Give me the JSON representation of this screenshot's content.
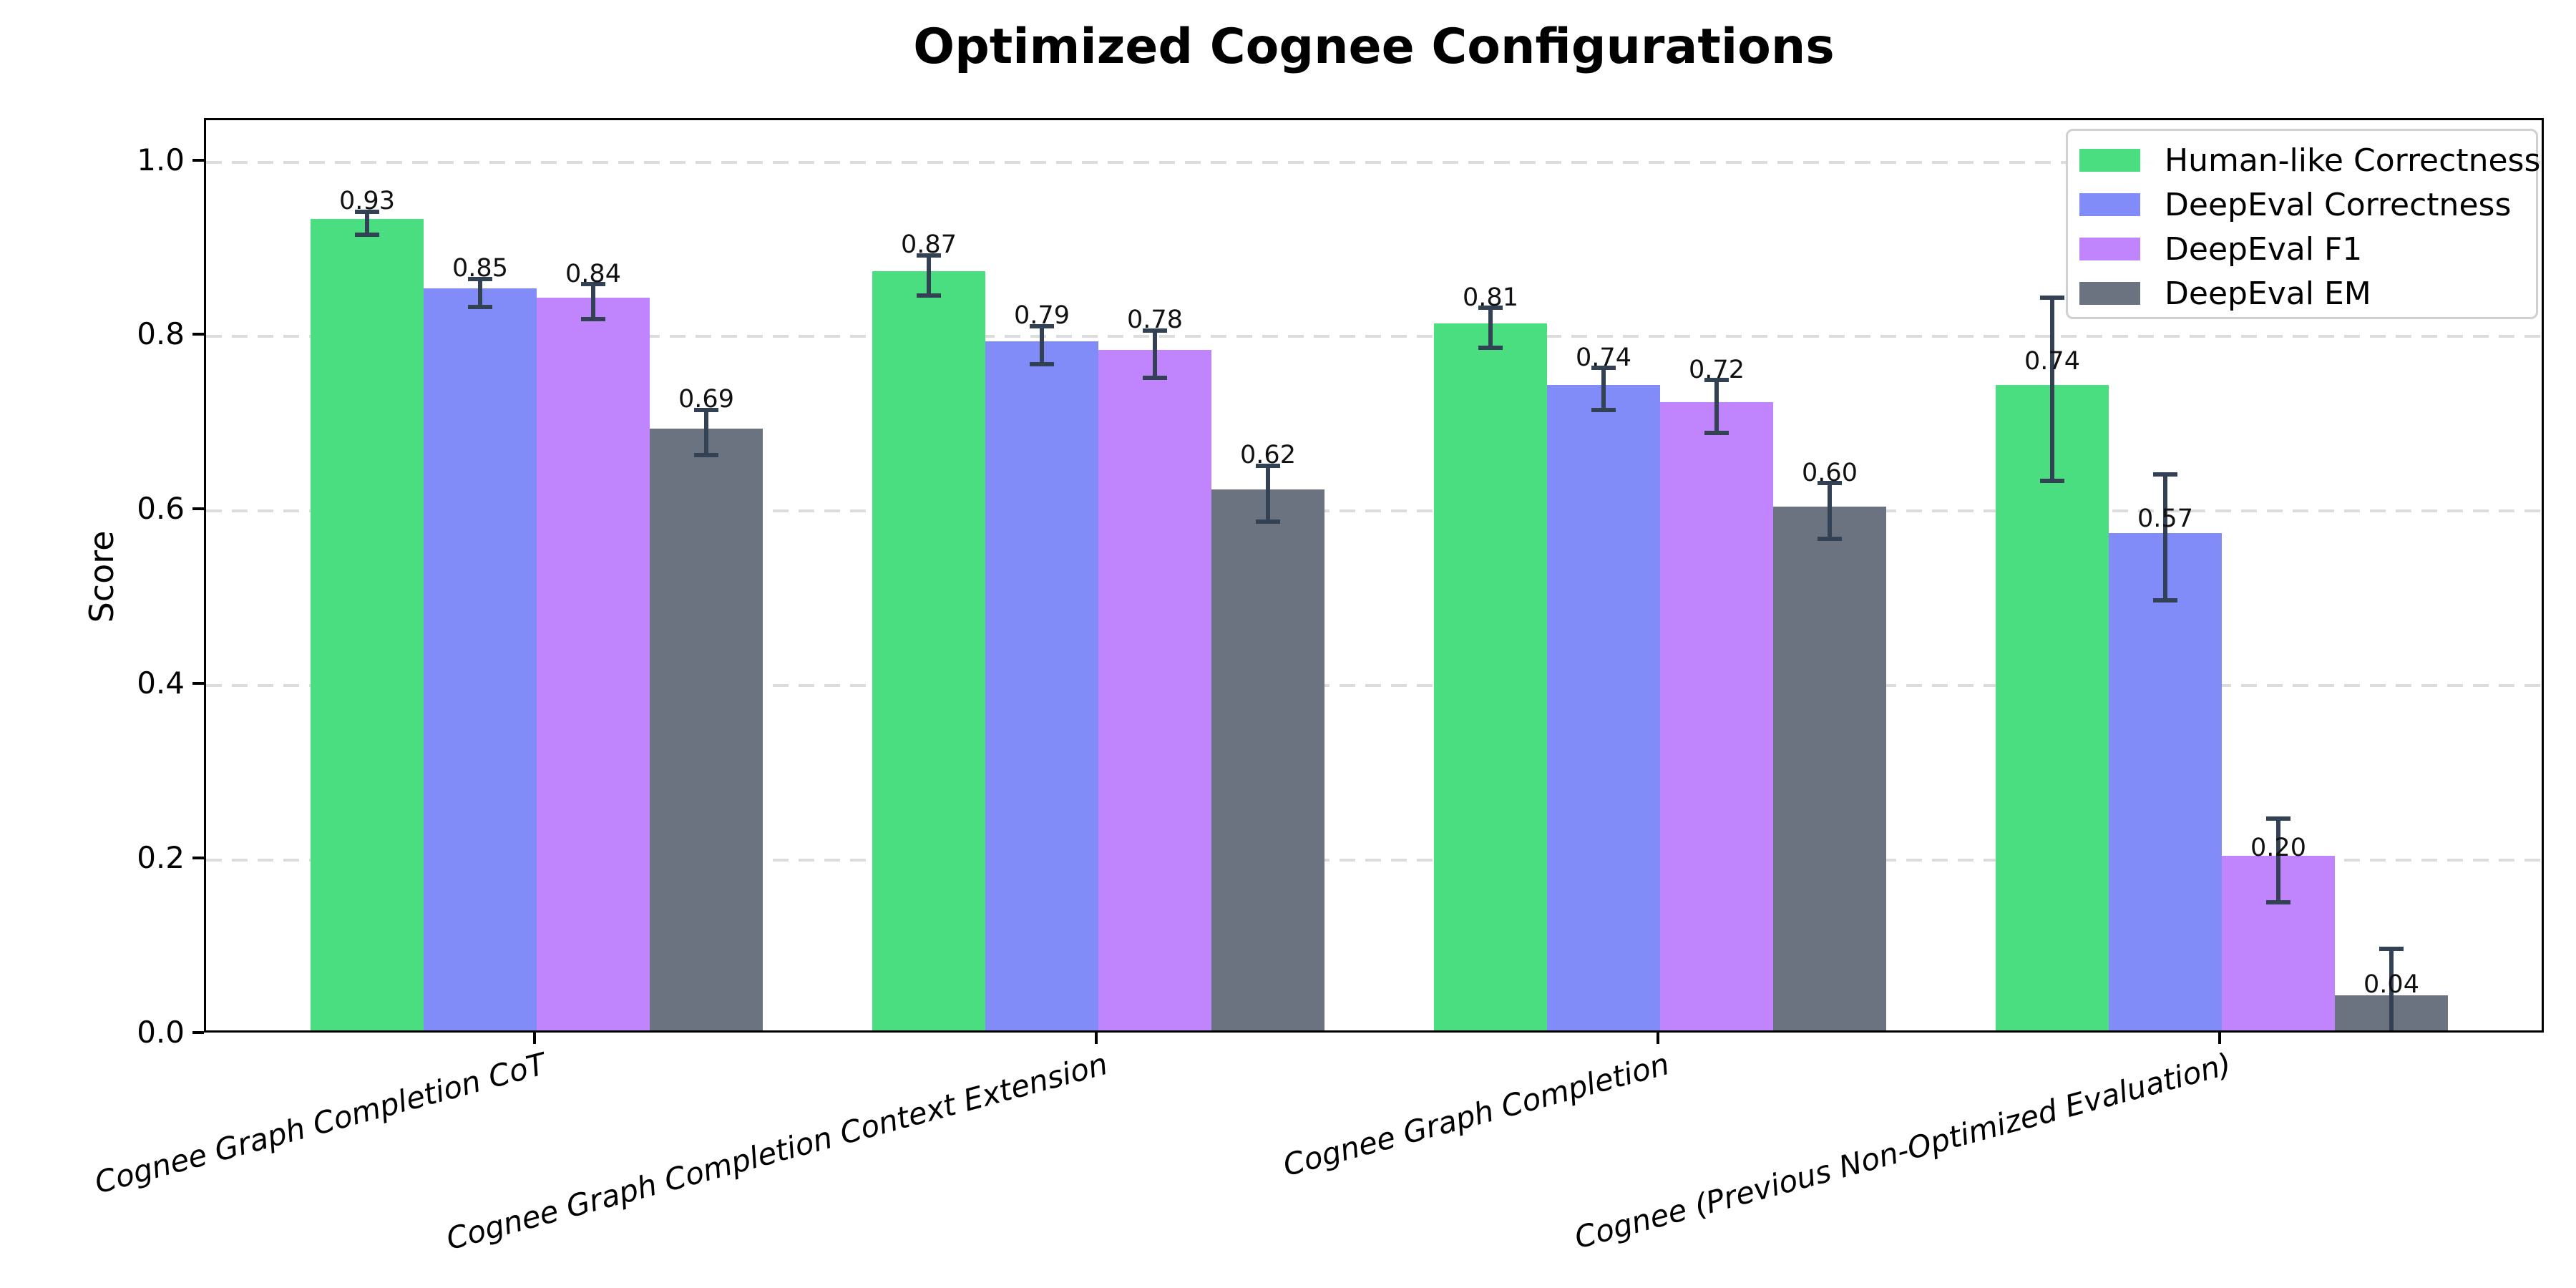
{
  "chart_data": {
    "type": "bar",
    "title": "Optimized Cognee Configurations",
    "ylabel": "Score",
    "xlabel": "",
    "ylim": [
      0.0,
      1.05
    ],
    "yticks": [
      0.0,
      0.2,
      0.4,
      0.6,
      0.8,
      1.0
    ],
    "grid": "horizontal dashed gridlines at y ticks",
    "legend_position": "upper right",
    "background_color": "#ffffff",
    "axis_color": "#000000",
    "gridline_color": "#dcdcdc",
    "error_bar_color": "#334155",
    "categories": [
      "Cognee Graph Completion CoT",
      "Cognee Graph Completion Context Extension",
      "Cognee Graph Completion",
      "Cognee (Previous Non-Optimized Evaluation)"
    ],
    "series": [
      {
        "name": "Human-like Correctness",
        "color": "#4ade80",
        "values": [
          0.93,
          0.87,
          0.81,
          0.74
        ],
        "errors": [
          0.013,
          0.023,
          0.023,
          0.105
        ],
        "labels": [
          "0.93",
          "0.87",
          "0.81",
          "0.74"
        ]
      },
      {
        "name": "DeepEval Correctness",
        "color": "#818cf8",
        "values": [
          0.85,
          0.79,
          0.74,
          0.57
        ],
        "errors": [
          0.016,
          0.022,
          0.024,
          0.072
        ],
        "labels": [
          "0.85",
          "0.79",
          "0.74",
          "0.57"
        ]
      },
      {
        "name": "DeepEval F1",
        "color": "#c084fc",
        "values": [
          0.84,
          0.78,
          0.72,
          0.2
        ],
        "errors": [
          0.02,
          0.027,
          0.03,
          0.048
        ],
        "labels": [
          "0.84",
          "0.78",
          "0.72",
          "0.20"
        ]
      },
      {
        "name": "DeepEval EM",
        "color": "#6b7280",
        "values": [
          0.69,
          0.62,
          0.6,
          0.04
        ],
        "errors": [
          0.026,
          0.032,
          0.032,
          0.058
        ],
        "labels": [
          "0.69",
          "0.62",
          "0.60",
          "0.04"
        ]
      }
    ]
  }
}
